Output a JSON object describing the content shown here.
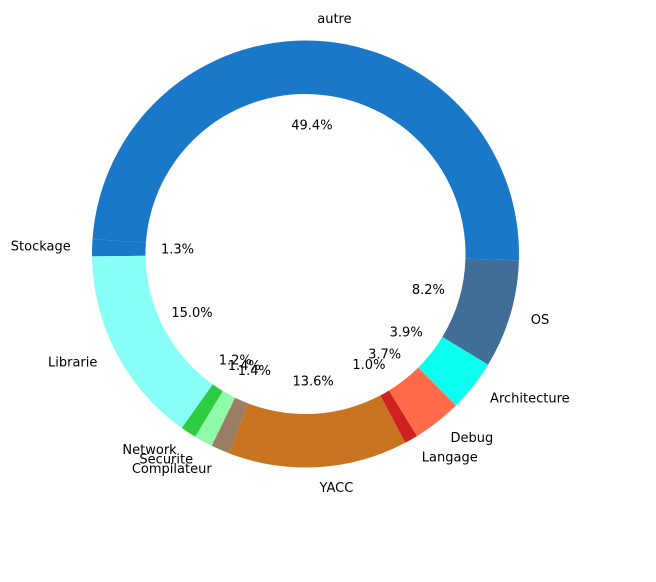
{
  "chart_data": {
    "type": "pie",
    "donut": true,
    "series": [
      {
        "label": "autre",
        "percent": 49.4,
        "pct_label": "49.4%",
        "color": "#1a78c8"
      },
      {
        "label": "Stockage",
        "percent": 1.3,
        "pct_label": "1.3%",
        "color": "#1a78c8"
      },
      {
        "label": "Librarie",
        "percent": 15.0,
        "pct_label": "15.0%",
        "color": "#87fff7"
      },
      {
        "label": "Network",
        "percent": 1.2,
        "pct_label": "1.2%",
        "color": "#2ecc40"
      },
      {
        "label": "Securite",
        "percent": 1.4,
        "pct_label": "1.4%",
        "color": "#8ffba8"
      },
      {
        "label": "Compilateur",
        "percent": 1.4,
        "pct_label": "1.4%",
        "color": "#9a7d63"
      },
      {
        "label": "YACC",
        "percent": 13.6,
        "pct_label": "13.6%",
        "color": "#c87421"
      },
      {
        "label": "Langage",
        "percent": 1.0,
        "pct_label": "1.0%",
        "color": "#d02121"
      },
      {
        "label": "Debug",
        "percent": 3.7,
        "pct_label": "3.7%",
        "color": "#ff6a49"
      },
      {
        "label": "Architecture",
        "percent": 3.9,
        "pct_label": "3.9%",
        "color": "#0affef"
      },
      {
        "label": "OS",
        "percent": 8.2,
        "pct_label": "8.2%",
        "color": "#416e96"
      }
    ],
    "legend": "none"
  }
}
